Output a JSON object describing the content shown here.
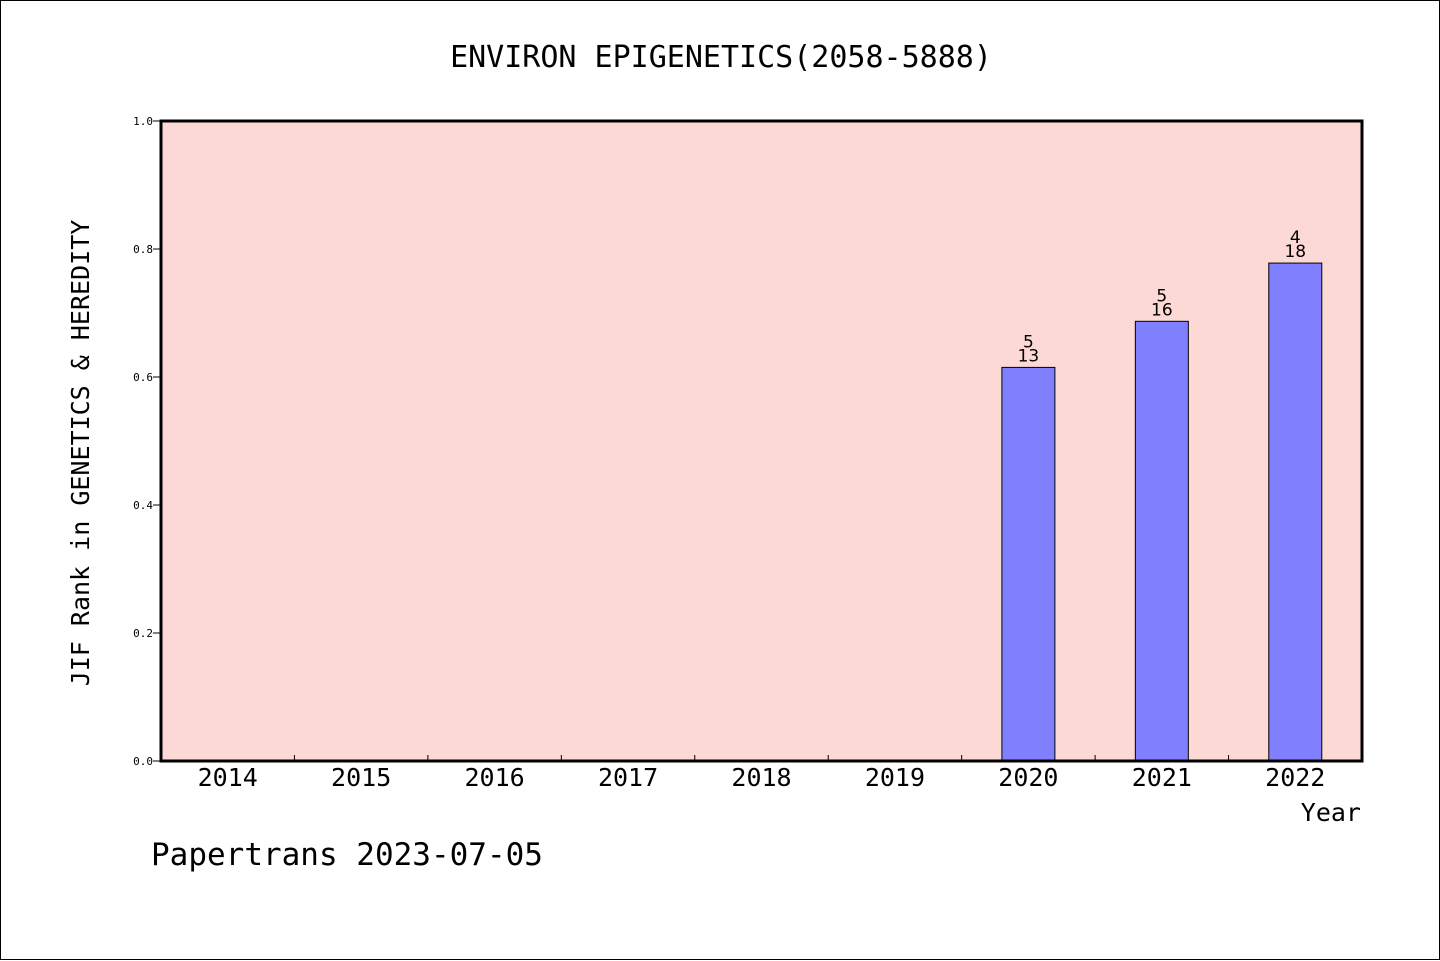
{
  "chart_data": {
    "type": "bar",
    "title": "ENVIRON EPIGENETICS(2058-5888)",
    "xlabel": "Year",
    "ylabel": "JIF Rank in GENETICS & HEREDITY",
    "ylim": [
      0,
      1.0
    ],
    "yticks": [
      "0.0",
      "0.2",
      "0.4",
      "0.6",
      "0.8",
      "1.0"
    ],
    "categories": [
      "2014",
      "2015",
      "2016",
      "2017",
      "2018",
      "2019",
      "2020",
      "2021",
      "2022"
    ],
    "values": [
      null,
      null,
      null,
      null,
      null,
      null,
      0.615,
      0.687,
      0.778
    ],
    "bar_labels": [
      null,
      null,
      null,
      null,
      null,
      null,
      {
        "rank": "5",
        "total": "13"
      },
      {
        "rank": "5",
        "total": "16"
      },
      {
        "rank": "4",
        "total": "18"
      }
    ],
    "grid": false,
    "colors": {
      "plot_background": "#fdd9d6",
      "bar_fill": "#8080ff",
      "bar_stroke": "#000000"
    }
  },
  "footer": {
    "text": "Papertrans 2023-07-05"
  }
}
